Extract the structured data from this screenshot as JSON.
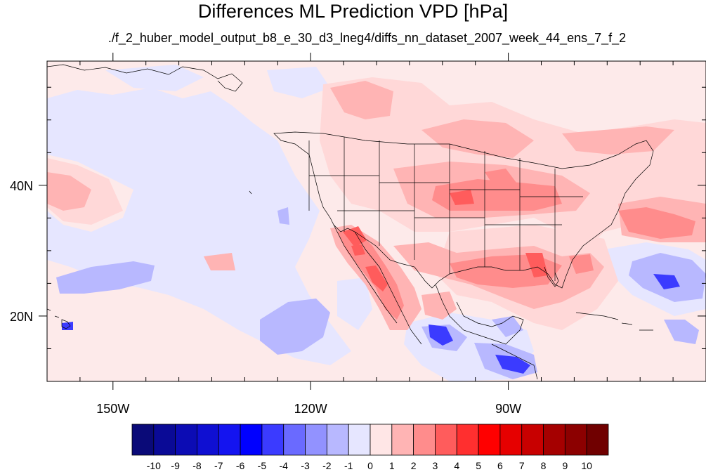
{
  "title": "Differences ML Prediction VPD [hPa]",
  "subtitle": "./f_2_huber_model_output_b8_e_30_d3_lneg4/diffs_nn_dataset_2007_week_44_ens_7_f_2",
  "axes": {
    "lon_range": [
      -160,
      -60
    ],
    "lat_range": [
      10,
      59
    ],
    "x_tick_labels": [
      {
        "lon": -150,
        "label": "150W"
      },
      {
        "lon": -120,
        "label": "120W"
      },
      {
        "lon": -90,
        "label": "90W"
      }
    ],
    "y_tick_labels": [
      {
        "lat": 40,
        "label": "40N"
      },
      {
        "lat": 20,
        "label": "20N"
      }
    ],
    "x_minor_ticks": [
      -155,
      -145,
      -140,
      -135,
      -130,
      -125,
      -115,
      -110,
      -105,
      -100,
      -95,
      -85,
      -80,
      -75,
      -70,
      -65
    ],
    "y_minor_ticks": [
      15,
      25,
      30,
      35,
      45,
      50,
      55
    ]
  },
  "colorbar": {
    "labels": [
      "-10",
      "-9",
      "-8",
      "-7",
      "-6",
      "-5",
      "-4",
      "-3",
      "-2",
      "-1",
      "0",
      "1",
      "2",
      "3",
      "4",
      "5",
      "6",
      "7",
      "8",
      "9",
      "10"
    ],
    "colors": [
      "#0a0a78",
      "#0a0a96",
      "#0c0cb4",
      "#0f0fd2",
      "#1414f0",
      "#0000ff",
      "#3b3bff",
      "#6a6aff",
      "#9292ff",
      "#b8b8ff",
      "#e6e6ff",
      "#ffe6e6",
      "#ffb4b4",
      "#ff8c8c",
      "#ff5c5c",
      "#ff2f2f",
      "#ff0000",
      "#e60000",
      "#c80000",
      "#a50000",
      "#8c0000",
      "#700000"
    ]
  },
  "palette": {
    "background_field": "#fdeaea",
    "light_blue": "#e6e6ff",
    "blue_2": "#b8b8ff",
    "blue_3": "#9292ff",
    "blue_5": "#2a2aff",
    "pink_1": "#ffd8d8",
    "pink_2": "#ffb4b4",
    "red_3": "#ff8c8c",
    "red_4": "#ff5c5c",
    "red_5": "#ff2f2f",
    "coast": "#000000"
  }
}
